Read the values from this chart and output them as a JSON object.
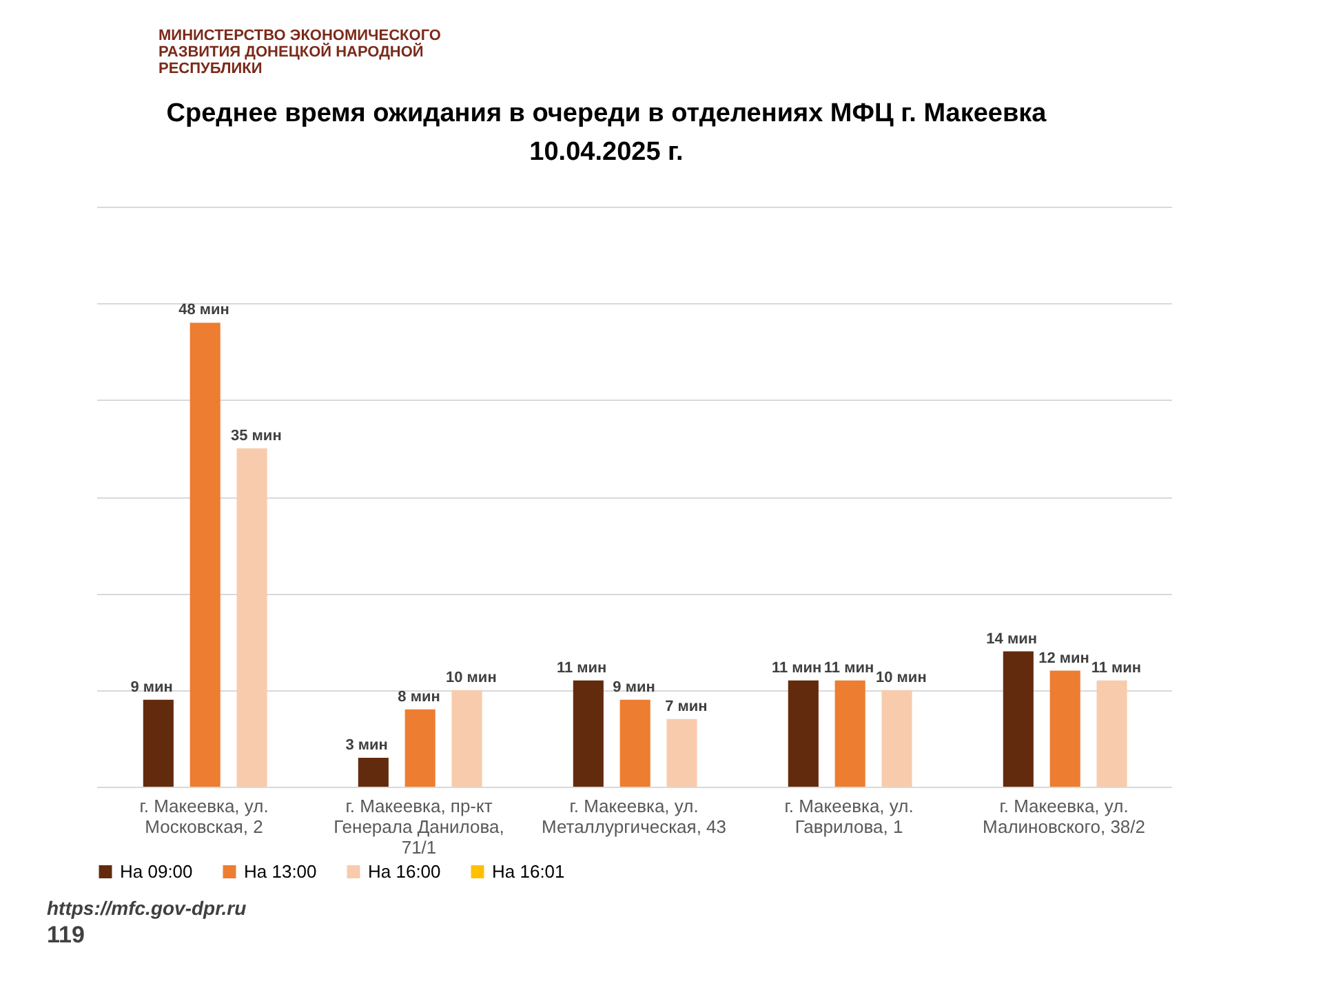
{
  "chart_data": {
    "type": "bar",
    "title": "Среднее время ожидания в очереди в отделениях МФЦ г. Макеевка",
    "subtitle": "10.04.2025 г.",
    "categories": [
      "г. Макеевка, ул. Московская, 2",
      "г. Макеевка, пр-кт Генерала Данилова, 71/1",
      "г. Макеевка, ул. Металлургическая, 43",
      "г. Макеевка, ул. Гаврилова, 1",
      "г. Макеевка, ул. Малиновского, 38/2"
    ],
    "series": [
      {
        "name": "На 09:00",
        "color": "#632b0d",
        "values": [
          9,
          3,
          11,
          11,
          14
        ],
        "value_labels": [
          "9 мин",
          "3 мин",
          "11 мин",
          "11 мин",
          "14 мин"
        ]
      },
      {
        "name": "На 13:00",
        "color": "#ed7d31",
        "values": [
          48,
          8,
          9,
          11,
          12
        ],
        "value_labels": [
          "48 мин",
          "8 мин",
          "9 мин",
          "11 мин",
          "12 мин"
        ]
      },
      {
        "name": "На 16:00",
        "color": "#f8cbad",
        "values": [
          35,
          10,
          7,
          10,
          11
        ],
        "value_labels": [
          "35 мин",
          "10 мин",
          "7 мин",
          "10 мин",
          "11 мин"
        ]
      },
      {
        "name": "На 16:01",
        "color": "#ffc000",
        "values": [
          null,
          null,
          null,
          null,
          null
        ],
        "value_labels": [
          null,
          null,
          null,
          null,
          null
        ]
      }
    ],
    "ylim": [
      0,
      60
    ],
    "yticks": [
      {
        "value": 0,
        "label": null
      },
      {
        "value": 10,
        "label": null
      },
      {
        "value": 20,
        "label": null
      },
      {
        "value": 30,
        "label": null
      },
      {
        "value": 40,
        "label": null
      },
      {
        "value": 50,
        "label": null
      },
      {
        "value": 60,
        "label": null
      }
    ],
    "grid": "y",
    "legend": "bottom",
    "annotations": [
      "МИНИСТЕРСТВО ЭКОНОМИЧЕСКОГО РАЗВИТИЯ ДОНЕЦКОЙ НАРОДНОЙ РЕСПУБЛИКИ",
      "https://mfc.gov-dpr.ru",
      "119"
    ]
  }
}
